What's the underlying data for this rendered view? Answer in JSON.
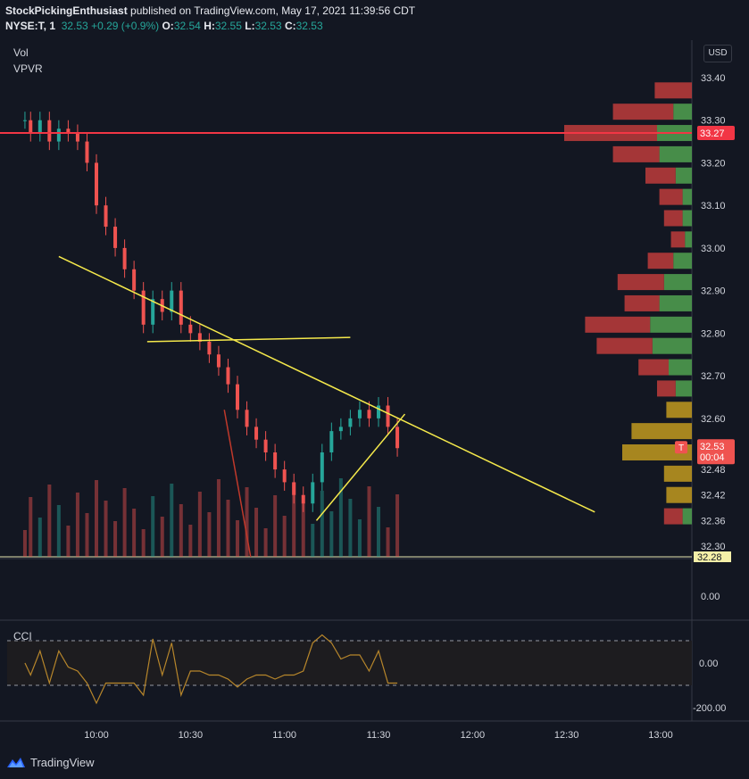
{
  "header": {
    "publisher": "StockPickingEnthusiast",
    "published_text": "published on TradingView.com, May 17, 2021 11:39:56 CDT",
    "symbol": "NYSE:T, 1",
    "last": "32.53",
    "change": "+0.29 (+0.9%)",
    "o_label": "O:",
    "o_val": "32.54",
    "h_label": "H:",
    "h_val": "32.55",
    "l_label": "L:",
    "l_val": "32.53",
    "c_label": "C:",
    "c_val": "32.53"
  },
  "indicators": {
    "vol": "Vol",
    "vpvr": "VPVR",
    "cci": "CCI"
  },
  "currency_button": "USD",
  "brand": "TradingView",
  "price_axis": {
    "ticks": [
      "33.40",
      "33.30",
      "33.20",
      "33.10",
      "33.00",
      "32.90",
      "32.80",
      "32.70",
      "32.60",
      "32.48",
      "32.42",
      "32.36",
      "32.30"
    ],
    "tick_values": [
      33.4,
      33.3,
      33.2,
      33.1,
      33.0,
      32.9,
      32.8,
      32.7,
      32.6,
      32.48,
      32.42,
      32.36,
      32.3
    ],
    "red_line_label": "33.27",
    "current_price_label": "32.53",
    "countdown": "00:04",
    "current_badge_letter": "T",
    "bottom_label": "32.28",
    "volume_zero_label": "0.00"
  },
  "cci_axis": {
    "ticks": [
      "0.00",
      "-200.00"
    ]
  },
  "time_axis": {
    "ticks": [
      "10:00",
      "10:30",
      "11:00",
      "11:30",
      "12:00",
      "12:30",
      "13:00"
    ]
  },
  "colors": {
    "up": "#26a69a",
    "down": "#ef5350",
    "background": "#131722",
    "red_line": "#f23645",
    "trendline": "#f5e94b",
    "cci_line": "#b7862b",
    "vpvr_up": "#4e9a4e",
    "vpvr_down": "#b53a3a",
    "vpvr_va_up": "#1e6fb8",
    "vpvr_va_down": "#b8921f"
  },
  "chart_data": {
    "type": "candlestick",
    "symbol": "NYSE:T",
    "interval": "1",
    "ylim": [
      32.28,
      33.45
    ],
    "horizontal_line": 33.27,
    "close_series": [
      [
        9.62,
        33.3
      ],
      [
        9.65,
        33.27
      ],
      [
        9.7,
        33.3
      ],
      [
        9.75,
        33.25
      ],
      [
        9.8,
        33.28
      ],
      [
        9.85,
        33.27
      ],
      [
        9.9,
        33.25
      ],
      [
        9.95,
        33.2
      ],
      [
        10.0,
        33.1
      ],
      [
        10.05,
        33.05
      ],
      [
        10.1,
        33.0
      ],
      [
        10.15,
        32.95
      ],
      [
        10.2,
        32.9
      ],
      [
        10.25,
        32.82
      ],
      [
        10.3,
        32.88
      ],
      [
        10.35,
        32.85
      ],
      [
        10.4,
        32.9
      ],
      [
        10.45,
        32.82
      ],
      [
        10.5,
        32.8
      ],
      [
        10.55,
        32.78
      ],
      [
        10.6,
        32.75
      ],
      [
        10.65,
        32.72
      ],
      [
        10.7,
        32.68
      ],
      [
        10.75,
        32.62
      ],
      [
        10.8,
        32.58
      ],
      [
        10.85,
        32.55
      ],
      [
        10.9,
        32.52
      ],
      [
        10.95,
        32.48
      ],
      [
        11.0,
        32.45
      ],
      [
        11.05,
        32.42
      ],
      [
        11.1,
        32.4
      ],
      [
        11.15,
        32.45
      ],
      [
        11.2,
        32.52
      ],
      [
        11.25,
        32.57
      ],
      [
        11.3,
        32.58
      ],
      [
        11.35,
        32.6
      ],
      [
        11.4,
        32.62
      ],
      [
        11.45,
        32.6
      ],
      [
        11.5,
        32.63
      ],
      [
        11.55,
        32.58
      ],
      [
        11.6,
        32.53
      ]
    ],
    "vpvr_levels": [
      33.37,
      33.32,
      33.27,
      33.22,
      33.17,
      33.12,
      33.07,
      33.02,
      32.97,
      32.92,
      32.87,
      32.82,
      32.77,
      32.72,
      32.67,
      32.62,
      32.57,
      32.52,
      32.47,
      32.42,
      32.37
    ],
    "vpvr_up": [
      0,
      8,
      15,
      14,
      7,
      4,
      4,
      3,
      8,
      12,
      14,
      18,
      17,
      10,
      7,
      0,
      0,
      0,
      0,
      0,
      4
    ],
    "vpvr_down": [
      16,
      26,
      40,
      20,
      13,
      10,
      8,
      6,
      11,
      20,
      15,
      28,
      24,
      13,
      8,
      11,
      26,
      30,
      12,
      11,
      8
    ],
    "cci_ylim": [
      -250,
      250
    ],
    "cci_thresholds": [
      100,
      -100
    ],
    "time_ticks": [
      "10:00",
      "10:30",
      "11:00",
      "11:30",
      "12:00",
      "12:30",
      "13:00"
    ]
  }
}
